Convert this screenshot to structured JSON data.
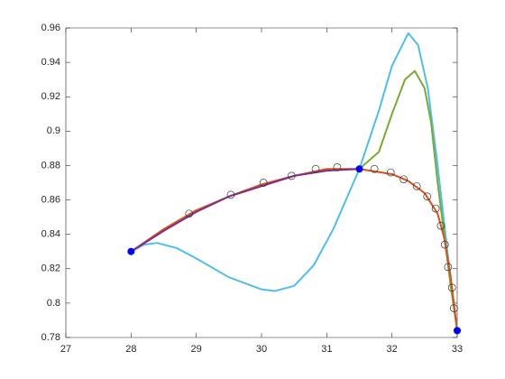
{
  "chart_data": {
    "type": "line",
    "xlim": [
      27,
      33
    ],
    "xticks": [
      27,
      28,
      29,
      30,
      31,
      32,
      33
    ],
    "ylim": [
      0.78,
      0.96
    ],
    "yticks": [
      0.78,
      0.8,
      0.82,
      0.84,
      0.86,
      0.88,
      0.9,
      0.92,
      0.94,
      0.96
    ],
    "grid": false,
    "box": true,
    "series": [
      {
        "mode": "line",
        "color": "#4DBEEE",
        "x": [
          28,
          28.2,
          28.4,
          28.7,
          29,
          29.5,
          30,
          30.2,
          30.5,
          30.8,
          31.1,
          31.5,
          31.8,
          32.0,
          32.25,
          32.4,
          32.55,
          32.7,
          32.85,
          33
        ],
        "values": [
          0.83,
          0.834,
          0.835,
          0.832,
          0.826,
          0.815,
          0.808,
          0.807,
          0.81,
          0.822,
          0.843,
          0.878,
          0.912,
          0.938,
          0.957,
          0.95,
          0.925,
          0.88,
          0.83,
          0.784
        ]
      },
      {
        "mode": "line",
        "color": "#77AC30",
        "x": [
          31.5,
          31.8,
          32.0,
          32.2,
          32.35,
          32.5,
          32.6,
          32.7,
          32.8,
          32.9,
          33
        ],
        "values": [
          0.878,
          0.888,
          0.91,
          0.93,
          0.935,
          0.925,
          0.905,
          0.87,
          0.84,
          0.81,
          0.784
        ]
      },
      {
        "mode": "line",
        "color": "#D95319",
        "x": [
          28,
          28.5,
          29,
          29.5,
          30,
          30.5,
          31,
          31.5,
          32,
          32.25,
          32.5,
          32.7,
          32.8,
          32.9,
          33
        ],
        "values": [
          0.83,
          0.843,
          0.854,
          0.862,
          0.869,
          0.874,
          0.878,
          0.878,
          0.875,
          0.871,
          0.864,
          0.852,
          0.838,
          0.815,
          0.784
        ]
      },
      {
        "mode": "line",
        "color": "#7E2F8E",
        "x": [
          28,
          28.5,
          29,
          29.5,
          30,
          30.5,
          31,
          31.5
        ],
        "values": [
          0.83,
          0.842,
          0.853,
          0.862,
          0.868,
          0.874,
          0.877,
          0.878
        ]
      },
      {
        "mode": "open-markers",
        "color": "#333333",
        "x": [
          28.89,
          29.53,
          30.03,
          30.46,
          30.83,
          31.16,
          31.73,
          31.98,
          32.18,
          32.38,
          32.54,
          32.67,
          32.75,
          32.81,
          32.86,
          32.92,
          32.95
        ],
        "values": [
          0.852,
          0.863,
          0.87,
          0.874,
          0.878,
          0.879,
          0.878,
          0.876,
          0.872,
          0.868,
          0.862,
          0.855,
          0.845,
          0.834,
          0.821,
          0.809,
          0.797
        ]
      },
      {
        "mode": "filled-markers",
        "color": "#0000FF",
        "x": [
          28,
          31.5,
          33
        ],
        "values": [
          0.83,
          0.878,
          0.784
        ]
      }
    ]
  }
}
